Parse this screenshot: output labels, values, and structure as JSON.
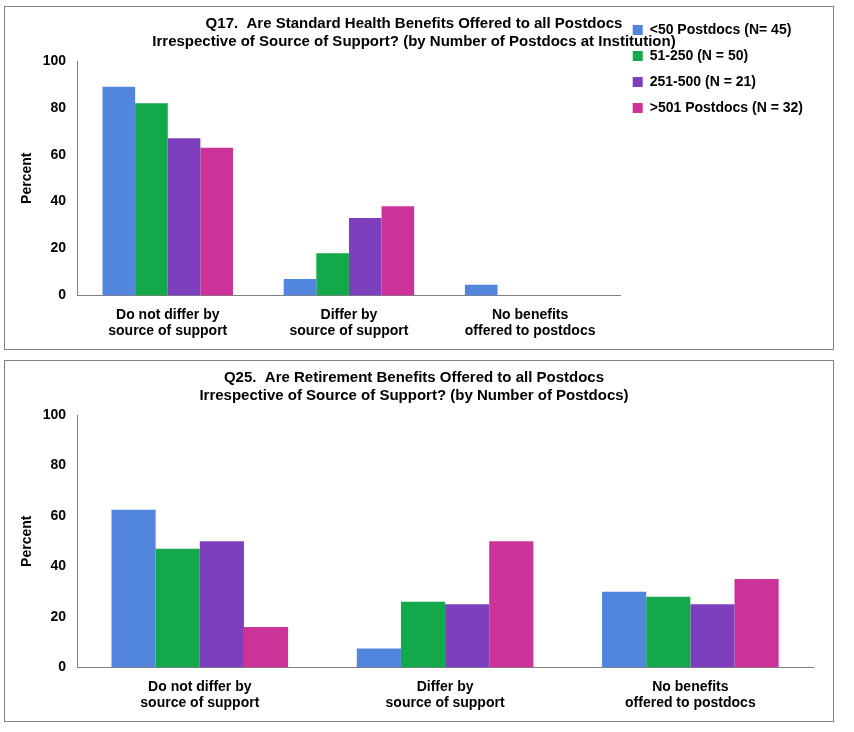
{
  "chart_data": [
    {
      "type": "bar",
      "title": [
        "Q17.  Are Standard Health Benefits Offered to all Postdocs",
        "Irrespective of Source of Support? (by Number of Postdocs at Institution)"
      ],
      "y_label": "Percent",
      "categories": [
        [
          "Do not differ by",
          "source of support"
        ],
        [
          "Differ by",
          "source of support"
        ],
        [
          "No benefits",
          "offered to postdocs"
        ]
      ],
      "series": [
        {
          "name": "<50 Postdocs (N= 45)",
          "color": "#5286DE",
          "values": [
            89,
            7,
            4.5
          ]
        },
        {
          "name": "51-250 (N = 50)",
          "color": "#13A84A",
          "values": [
            82,
            18,
            0
          ]
        },
        {
          "name": "251-500 (N = 21)",
          "color": "#7E3FBF",
          "values": [
            67,
            33,
            0
          ]
        },
        {
          "name": ">501 Postdocs (N = 32)",
          "color": "#CC3399",
          "values": [
            63,
            38,
            0
          ]
        }
      ],
      "ylim": [
        0,
        100
      ],
      "yticks": [
        0,
        20,
        40,
        60,
        80,
        100
      ],
      "grid": false,
      "legend": "right"
    },
    {
      "type": "bar",
      "title": [
        "Q25.  Are Retirement Benefits Offered to all Postdocs",
        "Irrespective of Source of Support? (by Number of Postdocs)"
      ],
      "y_label": "Percent",
      "categories": [
        [
          "Do not differ by",
          "source of support"
        ],
        [
          "Differ by",
          "source of support"
        ],
        [
          "No benefits",
          "offered to postdocs"
        ]
      ],
      "series": [
        {
          "color": "#5286DE",
          "values": [
            62.5,
            7.5,
            30
          ]
        },
        {
          "color": "#13A84A",
          "values": [
            47,
            26,
            28
          ]
        },
        {
          "color": "#7E3FBF",
          "values": [
            50,
            25,
            25
          ]
        },
        {
          "color": "#CC3399",
          "values": [
            16,
            50,
            35
          ]
        }
      ],
      "ylim": [
        0,
        100
      ],
      "yticks": [
        0,
        20,
        40,
        60,
        80,
        100
      ],
      "grid": false
    }
  ]
}
